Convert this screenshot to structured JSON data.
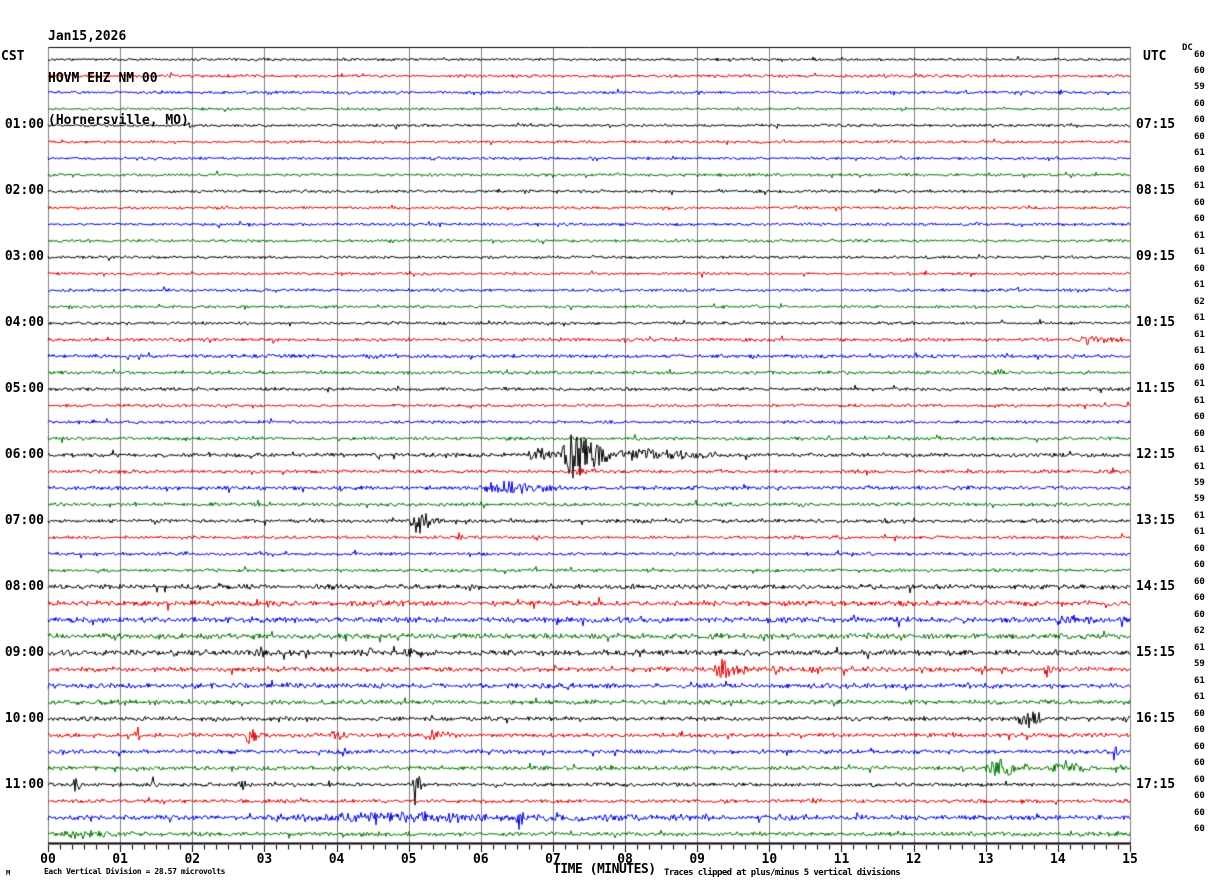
{
  "title": {
    "date": "Jan15,2026",
    "station": "HOVM EHZ NM 00",
    "location": "(Hornersville, MO)"
  },
  "axes": {
    "left_header": "CST",
    "right_header": "UTC",
    "dc_label": "DC",
    "left_times": [
      "01:00",
      "02:00",
      "03:00",
      "04:00",
      "05:00",
      "06:00",
      "07:00",
      "08:00",
      "09:00",
      "10:00",
      "11:00"
    ],
    "right_times": [
      "07:15",
      "08:15",
      "09:15",
      "10:15",
      "11:15",
      "12:15",
      "13:15",
      "14:15",
      "15:15",
      "16:15",
      "17:15"
    ],
    "x_ticks": [
      "00",
      "01",
      "02",
      "03",
      "04",
      "05",
      "06",
      "07",
      "08",
      "09",
      "10",
      "11",
      "12",
      "13",
      "14",
      "15"
    ],
    "x_label": "TIME (MINUTES)"
  },
  "footer": {
    "left": "Each Vertical Division =   28.57 microvolts",
    "right": "Traces clipped at plus/minus 5 vertical divisions",
    "mark": "M"
  },
  "chart_data": {
    "type": "line",
    "subtype": "helicorder-seismogram",
    "station": "HOVM EHZ NM 00 (Hornersville, MO)",
    "date": "Jan15,2026",
    "x_range_minutes": [
      0,
      15
    ],
    "rows": 48,
    "minutes_per_row": 15,
    "row_order_colors_cycle": [
      "black",
      "red",
      "blue",
      "green"
    ],
    "trace_colors": [
      "#000000",
      "#dd0000",
      "#0000dd",
      "#007700"
    ],
    "grid_color": "#808080",
    "clip_note_divisions": 5,
    "microvolts_per_division": 28.57,
    "dc_values": [
      60,
      60,
      59,
      60,
      60,
      60,
      61,
      60,
      61,
      60,
      60,
      61,
      61,
      60,
      61,
      62,
      61,
      61,
      61,
      60,
      61,
      61,
      60,
      60,
      61,
      61,
      59,
      59,
      61,
      61,
      60,
      60,
      60,
      60,
      60,
      62,
      61,
      59,
      61,
      61,
      60,
      60,
      60,
      60,
      60,
      60,
      60,
      60
    ],
    "noise_levels": [
      1.6,
      1.8,
      1.7,
      1.6,
      1.7,
      1.6,
      1.7,
      1.8,
      1.8,
      1.6,
      1.7,
      1.8,
      1.7,
      1.6,
      1.8,
      1.7,
      1.8,
      2.0,
      2.2,
      2.0,
      2.0,
      1.8,
      1.8,
      2.0,
      2.4,
      2.2,
      2.4,
      2.2,
      2.2,
      2.0,
      2.0,
      2.0,
      3.0,
      3.2,
      3.4,
      3.3,
      3.4,
      3.0,
      3.0,
      2.8,
      2.5,
      2.5,
      2.5,
      2.5,
      2.2,
      2.2,
      2.9,
      2.6
    ],
    "events": [
      {
        "row": 4,
        "t0": 1.92,
        "t1": 2.03,
        "amp": 4
      },
      {
        "row": 13,
        "t0": 9.03,
        "t1": 9.12,
        "amp": 5
      },
      {
        "row": 17,
        "t0": 14.2,
        "t1": 15.0,
        "amp": 4.5
      },
      {
        "row": 18,
        "t0": 4.42,
        "t1": 4.52,
        "amp": 7
      },
      {
        "row": 19,
        "t0": 13.1,
        "t1": 13.35,
        "amp": 4
      },
      {
        "row": 20,
        "t0": 6.25,
        "t1": 6.45,
        "amp": 4
      },
      {
        "row": 24,
        "t0": 6.65,
        "t1": 7.1,
        "amp": 8
      },
      {
        "row": 24,
        "t0": 7.1,
        "t1": 7.75,
        "amp": 26
      },
      {
        "row": 24,
        "t0": 7.75,
        "t1": 9.3,
        "amp": 7
      },
      {
        "row": 25,
        "t0": 7.3,
        "t1": 7.6,
        "amp": 5
      },
      {
        "row": 26,
        "t0": 6.05,
        "t1": 7.0,
        "amp": 8
      },
      {
        "row": 26,
        "t0": 7.02,
        "t1": 7.1,
        "amp": 18
      },
      {
        "row": 28,
        "t0": 5.0,
        "t1": 5.45,
        "amp": 12
      },
      {
        "row": 29,
        "t0": 5.68,
        "t1": 5.76,
        "amp": 7
      },
      {
        "row": 33,
        "t0": 3.0,
        "t1": 3.15,
        "amp": 6
      },
      {
        "row": 34,
        "t0": 13.9,
        "t1": 14.6,
        "amp": 5
      },
      {
        "row": 36,
        "t0": 2.85,
        "t1": 3.1,
        "amp": 5
      },
      {
        "row": 36,
        "t0": 4.4,
        "t1": 4.62,
        "amp": 5
      },
      {
        "row": 36,
        "t0": 4.9,
        "t1": 5.1,
        "amp": 5
      },
      {
        "row": 37,
        "t0": 9.2,
        "t1": 9.7,
        "amp": 11
      },
      {
        "row": 37,
        "t0": 10.0,
        "t1": 10.25,
        "amp": 7
      },
      {
        "row": 37,
        "t0": 11.0,
        "t1": 11.15,
        "amp": 6
      },
      {
        "row": 37,
        "t0": 12.9,
        "t1": 13.1,
        "amp": 6
      },
      {
        "row": 37,
        "t0": 13.8,
        "t1": 14.0,
        "amp": 7
      },
      {
        "row": 40,
        "t0": 13.45,
        "t1": 13.78,
        "amp": 16
      },
      {
        "row": 41,
        "t0": 1.2,
        "t1": 1.28,
        "amp": 15
      },
      {
        "row": 41,
        "t0": 2.72,
        "t1": 2.95,
        "amp": 9
      },
      {
        "row": 41,
        "t0": 3.9,
        "t1": 4.2,
        "amp": 6
      },
      {
        "row": 41,
        "t0": 5.2,
        "t1": 5.65,
        "amp": 5
      },
      {
        "row": 42,
        "t0": 14.75,
        "t1": 14.85,
        "amp": 9
      },
      {
        "row": 43,
        "t0": 12.98,
        "t1": 13.6,
        "amp": 10
      },
      {
        "row": 43,
        "t0": 13.9,
        "t1": 14.45,
        "amp": 8
      },
      {
        "row": 44,
        "t0": 0.35,
        "t1": 0.45,
        "amp": 9
      },
      {
        "row": 44,
        "t0": 1.42,
        "t1": 1.56,
        "amp": 9
      },
      {
        "row": 44,
        "t0": 2.6,
        "t1": 2.76,
        "amp": 8
      },
      {
        "row": 44,
        "t0": 5.05,
        "t1": 5.18,
        "amp": 22
      },
      {
        "row": 46,
        "t0": 3.0,
        "t1": 9.05,
        "amp": 4.5
      },
      {
        "row": 46,
        "t0": 6.5,
        "t1": 6.6,
        "amp": 10
      },
      {
        "row": 47,
        "t0": 0.1,
        "t1": 1.3,
        "amp": 3.2
      }
    ]
  }
}
